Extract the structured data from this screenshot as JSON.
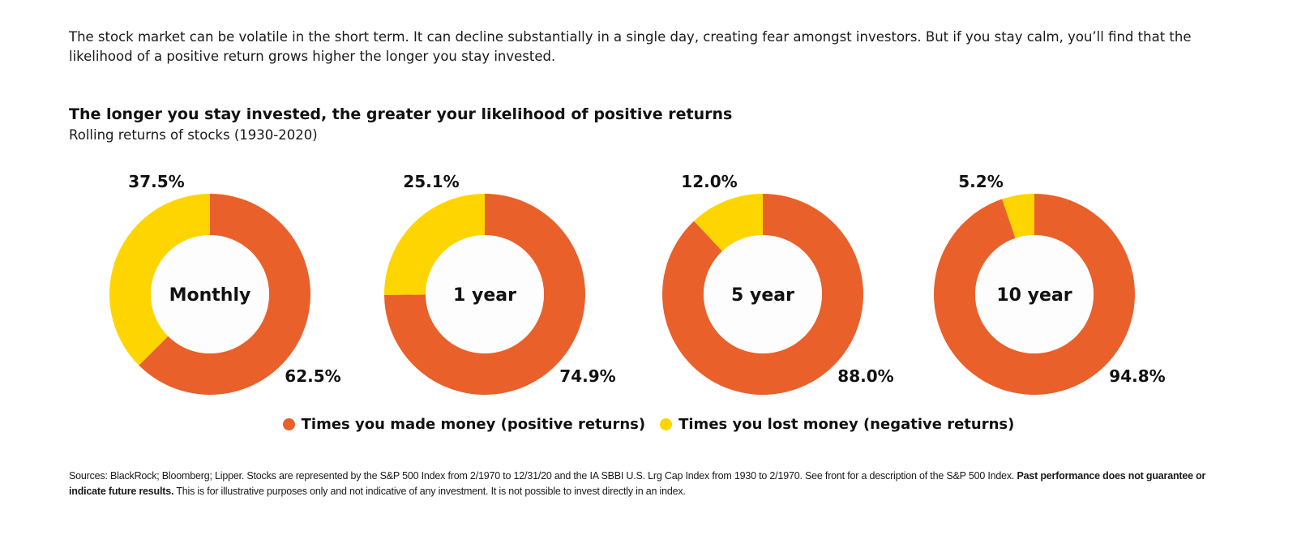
{
  "intro": "The stock market can be volatile in the short term. It can decline substantially in a single day, creating fear amongst investors. But if you stay calm, you’ll find that the likelihood of a positive return grows higher the longer you stay invested.",
  "colors": {
    "positive": "#E9602A",
    "negative": "#FFD500",
    "center": "#FDFDFD"
  },
  "chart_data": {
    "type": "pie",
    "title": "The longer you stay invested, the greater your likelihood of positive returns",
    "subtitle": "Rolling returns of stocks (1930-2020)",
    "series_names": [
      "Times you made money (positive returns)",
      "Times you lost money (negative returns)"
    ],
    "charts": [
      {
        "label": "Monthly",
        "positive": 62.5,
        "negative": 37.5,
        "positive_label": "62.5%",
        "negative_label": "37.5%"
      },
      {
        "label": "1 year",
        "positive": 74.9,
        "negative": 25.1,
        "positive_label": "74.9%",
        "negative_label": "25.1%"
      },
      {
        "label": "5 year",
        "positive": 88.0,
        "negative": 12.0,
        "positive_label": "88.0%",
        "negative_label": "12.0%"
      },
      {
        "label": "10 year",
        "positive": 94.8,
        "negative": 5.2,
        "positive_label": "94.8%",
        "negative_label": "5.2%"
      }
    ]
  },
  "legend": {
    "positive": "Times you made money (positive returns)",
    "negative": "Times you lost money (negative returns)"
  },
  "footnote": {
    "text1": "Sources: BlackRock; Bloomberg; Lipper. Stocks are represented by the S&P 500 Index from 2/1970 to 12/31/20 and the IA SBBI U.S. Lrg Cap Index from 1930 to 2/1970. See front for a description of the S&P 500 Index. ",
    "bold": "Past performance does not guarantee or indicate future results.",
    "text2": " This is for illustrative purposes only and not indicative of any investment. It is not possible to invest directly in an index."
  }
}
